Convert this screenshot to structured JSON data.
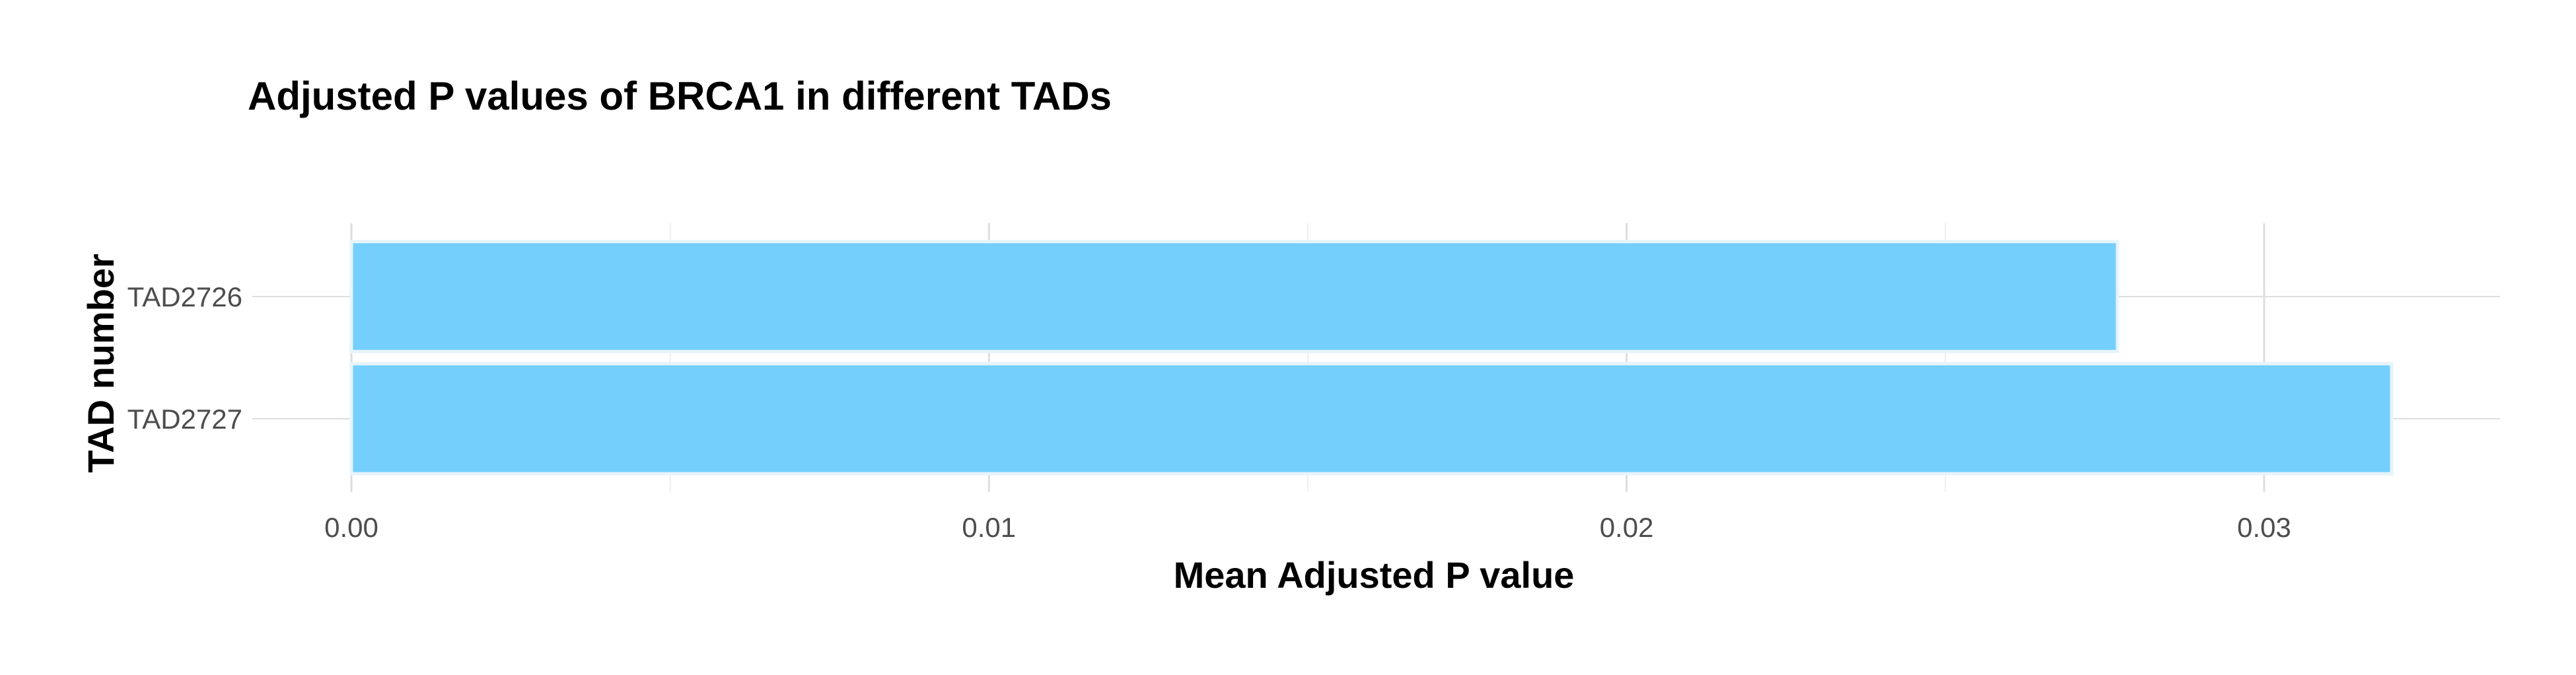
{
  "chart_data": {
    "type": "bar",
    "orientation": "horizontal",
    "title": "Adjusted P values of BRCA1 in different TADs",
    "xlabel": "Mean Adjusted P value",
    "ylabel": "TAD number",
    "categories": [
      "TAD2726",
      "TAD2727"
    ],
    "values": [
      0.0277,
      0.032
    ],
    "xlim": [
      0,
      0.0337
    ],
    "x_ticks": [
      0,
      0.01,
      0.02,
      0.03
    ],
    "x_tick_labels": [
      "0.00",
      "0.01",
      "0.02",
      "0.03"
    ],
    "grid": true,
    "legend": "none",
    "colors": {
      "bar_fill": "#74cffd",
      "bar_stroke": "#e6f4fb",
      "grid_major": "#dedede",
      "grid_minor": "#efefef",
      "text": "#000000",
      "tick_text": "#4d4d4d"
    }
  }
}
